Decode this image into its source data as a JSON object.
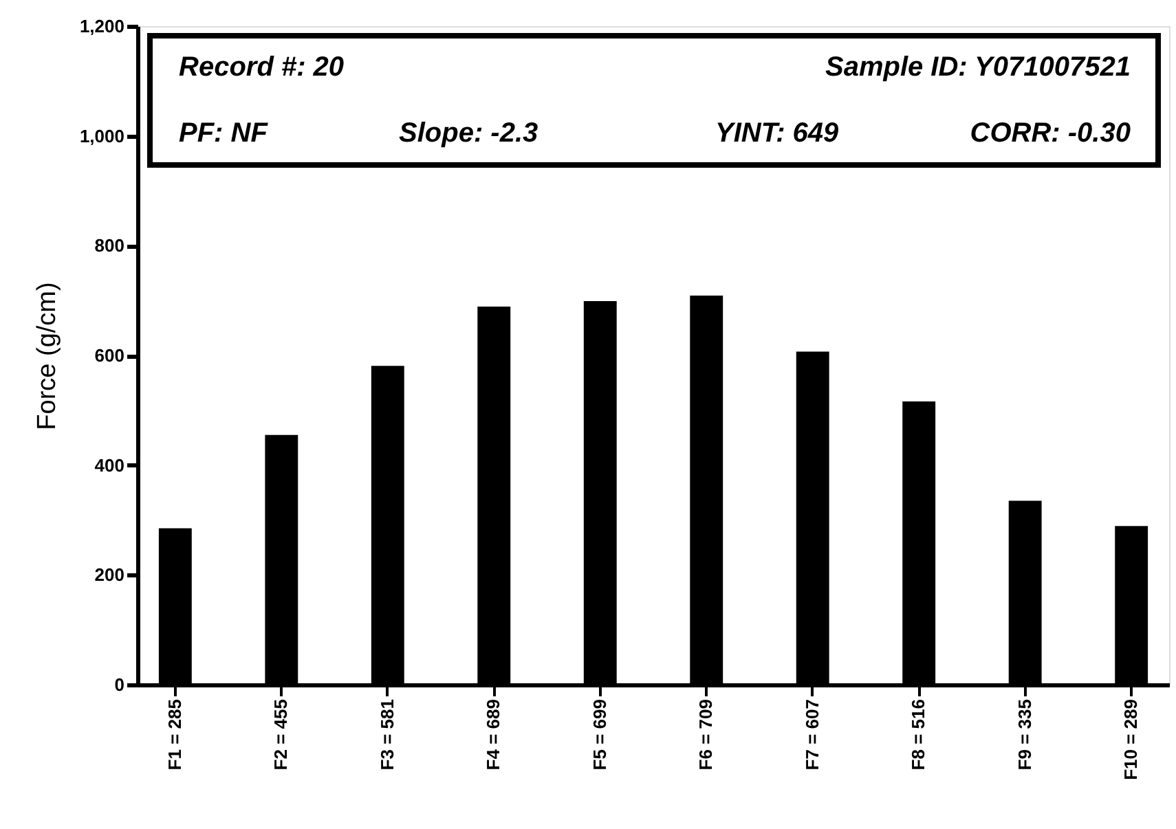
{
  "chart_data": {
    "type": "bar",
    "ylabel": "Force (g/cm)",
    "categories": [
      "F1 = 285",
      "F2 = 455",
      "F3 = 581",
      "F4 = 689",
      "F5 = 699",
      "F6 = 709",
      "F7 = 607",
      "F8 = 516",
      "F9 = 335",
      "F10 = 289"
    ],
    "values": [
      285,
      455,
      581,
      689,
      699,
      709,
      607,
      516,
      335,
      289
    ],
    "color": "#000000",
    "ylim": [
      0,
      1200
    ],
    "yticks": [
      0,
      200,
      400,
      600,
      800,
      {
        "value": 1000,
        "label": "1,000"
      },
      {
        "value": 1200,
        "label": "1,200"
      }
    ],
    "grid": false,
    "annotations": [
      "Record #: 20",
      "Sample ID: Y071007521",
      "PF: NF",
      "Slope: -2.3",
      "YINT: 649",
      "CORR: -0.30"
    ]
  }
}
